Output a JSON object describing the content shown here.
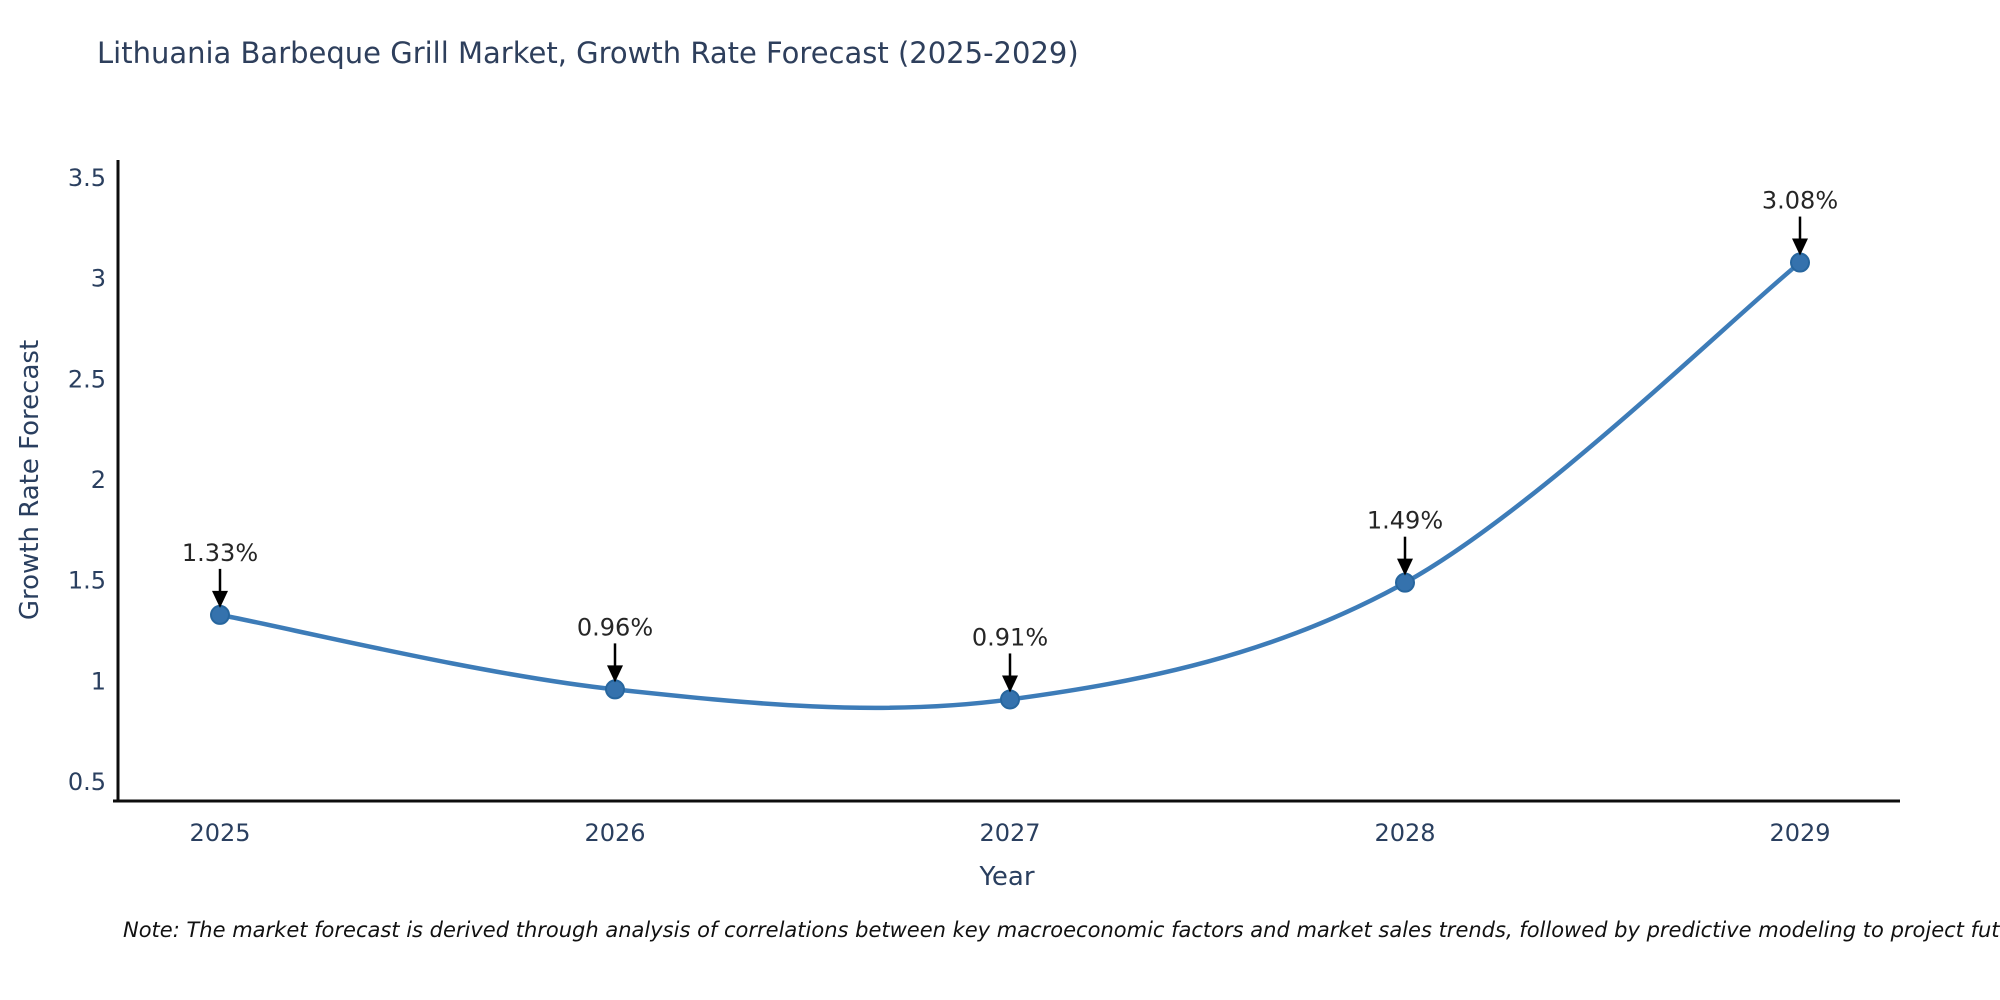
{
  "chart_data": {
    "type": "line",
    "title": "Lithuania Barbeque Grill Market, Growth Rate Forecast (2025-2029)",
    "xlabel": "Year",
    "ylabel": "Growth Rate Forecast",
    "categories": [
      "2025",
      "2026",
      "2027",
      "2028",
      "2029"
    ],
    "series": [
      {
        "name": "Growth Rate Forecast",
        "values": [
          1.33,
          0.96,
          0.91,
          1.49,
          3.08
        ]
      }
    ],
    "point_labels": [
      "1.33%",
      "0.96%",
      "0.91%",
      "1.49%",
      "3.08%"
    ],
    "y_ticks": [
      "0.5",
      "1",
      "1.5",
      "2",
      "2.5",
      "3",
      "3.5"
    ],
    "y_tick_values": [
      0.5,
      1,
      1.5,
      2,
      2.5,
      3,
      3.5
    ],
    "ylim": [
      0.39,
      3.6
    ],
    "grid": false,
    "legend_position": "none",
    "curve": "spline",
    "colors": {
      "line": "#3d7cb8",
      "marker": "#3572ad",
      "marker_edge": "#27669e",
      "arrow": "#000000",
      "title_text": "#2e3f5c",
      "axis_text": "#2a3f5f",
      "annotation_text": "#262626",
      "spine": "#0d0d0d"
    }
  },
  "footer": {
    "note": "Note: The market forecast is derived through analysis of correlations between key macroeconomic factors and market sales trends, followed by predictive modeling to project future sales"
  }
}
